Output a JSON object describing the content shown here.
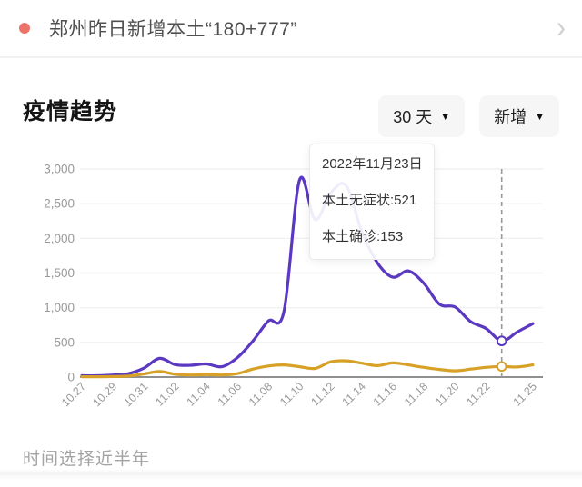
{
  "header": {
    "title": "郑州昨日新增本土“180+777”",
    "chevron_icon": "›",
    "bullet_color": "#ec7368"
  },
  "trend_card": {
    "title": "疫情趋势",
    "range_button": {
      "label": "30 天",
      "caret": "▼"
    },
    "metric_button": {
      "label": "新增",
      "caret": "▼"
    }
  },
  "tooltip": {
    "date": "2022年11月23日",
    "lines": [
      "本土无症状:521",
      "本土确诊:153"
    ]
  },
  "footer": {
    "label": "时间选择近半年"
  },
  "chart_data": {
    "type": "line",
    "title": "疫情趋势",
    "x_ticks": [
      "10.27",
      "10.29",
      "10.31",
      "11.02",
      "11.04",
      "11.06",
      "11.08",
      "11.10",
      "11.12",
      "11.14",
      "11.16",
      "11.18",
      "11.20",
      "11.22",
      "11.25"
    ],
    "tick_indices": [
      0,
      2,
      4,
      6,
      8,
      10,
      12,
      14,
      16,
      18,
      20,
      22,
      24,
      26,
      29
    ],
    "dates": [
      "10.27",
      "10.28",
      "10.29",
      "10.30",
      "10.31",
      "11.01",
      "11.02",
      "11.03",
      "11.04",
      "11.05",
      "11.06",
      "11.07",
      "11.08",
      "11.09",
      "11.10",
      "11.11",
      "11.12",
      "11.13",
      "11.14",
      "11.15",
      "11.16",
      "11.17",
      "11.18",
      "11.19",
      "11.20",
      "11.21",
      "11.22",
      "11.23",
      "11.24",
      "11.25"
    ],
    "series": [
      {
        "name": "本土无症状",
        "color": "#5b38c2",
        "values": [
          20,
          20,
          30,
          50,
          130,
          270,
          180,
          170,
          190,
          150,
          280,
          520,
          810,
          950,
          2840,
          2270,
          2650,
          2760,
          2100,
          1650,
          1440,
          1530,
          1350,
          1050,
          1010,
          800,
          700,
          521,
          650,
          770
        ]
      },
      {
        "name": "本土确诊",
        "color": "#d6a126",
        "values": [
          5,
          5,
          8,
          15,
          45,
          80,
          40,
          30,
          35,
          30,
          50,
          115,
          160,
          175,
          150,
          125,
          220,
          235,
          200,
          165,
          205,
          175,
          140,
          110,
          90,
          115,
          140,
          153,
          145,
          175
        ]
      }
    ],
    "ylim": [
      0,
      3000
    ],
    "yticks": [
      0,
      500,
      1000,
      1500,
      2000,
      2500,
      3000
    ],
    "highlight_index": 27,
    "highlight_values": {
      "本土无症状": 521,
      "本土确诊": 153
    },
    "grid": true,
    "legend": "none",
    "axis_label_color": "#999999",
    "grid_color": "#f1f1f1",
    "axis_line_color": "#8f8f8f",
    "dashed_line_color": "#9a9a9a"
  }
}
